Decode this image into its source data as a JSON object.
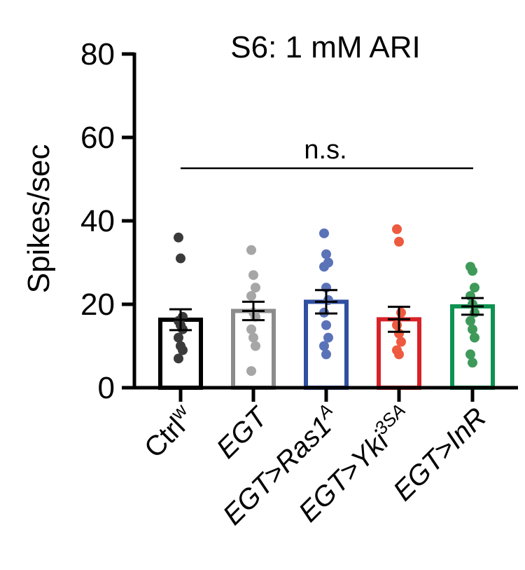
{
  "chart_data": {
    "type": "bar",
    "title": "S6: 1 mM ARI",
    "ylabel": "Spikes/sec",
    "xlabel": "",
    "ylim": [
      0,
      80
    ],
    "yticks": [
      0,
      20,
      40,
      60,
      80
    ],
    "annotation": "n.s.",
    "categories": [
      {
        "base": "Ctrl",
        "sup": "w",
        "italic": false,
        "color": "#000000",
        "dot_color": "#3a3a3a"
      },
      {
        "base": "EGT",
        "sup": "",
        "italic": true,
        "color": "#8c8c8c",
        "dot_color": "#a6a6a6"
      },
      {
        "base": "EGT>Ras1",
        "sup": "A",
        "italic": true,
        "color": "#2f4fa0",
        "dot_color": "#5a72b8"
      },
      {
        "base": "EGT>Yki",
        "sup": "3SA",
        "italic": true,
        "color": "#d82228",
        "dot_color": "#ee5a3f"
      },
      {
        "base": "EGT>InR",
        "sup": "",
        "italic": true,
        "color": "#0e9250",
        "dot_color": "#3f9a5a"
      }
    ],
    "values": [
      16.3,
      18.4,
      20.6,
      16.4,
      19.5
    ],
    "sem": [
      2.5,
      2.2,
      2.8,
      3.0,
      2.0
    ],
    "points": [
      [
        36,
        31,
        17,
        16,
        15,
        14,
        12,
        10,
        9,
        7
      ],
      [
        33,
        27,
        24,
        22,
        18,
        17,
        14,
        12,
        10,
        4
      ],
      [
        37,
        32,
        30,
        29,
        24,
        21,
        18,
        15,
        12,
        10,
        8
      ],
      [
        38,
        35,
        18,
        15,
        13,
        11,
        9,
        8
      ],
      [
        29,
        28,
        24,
        22,
        20,
        18,
        16,
        14,
        12,
        8,
        6
      ]
    ]
  }
}
